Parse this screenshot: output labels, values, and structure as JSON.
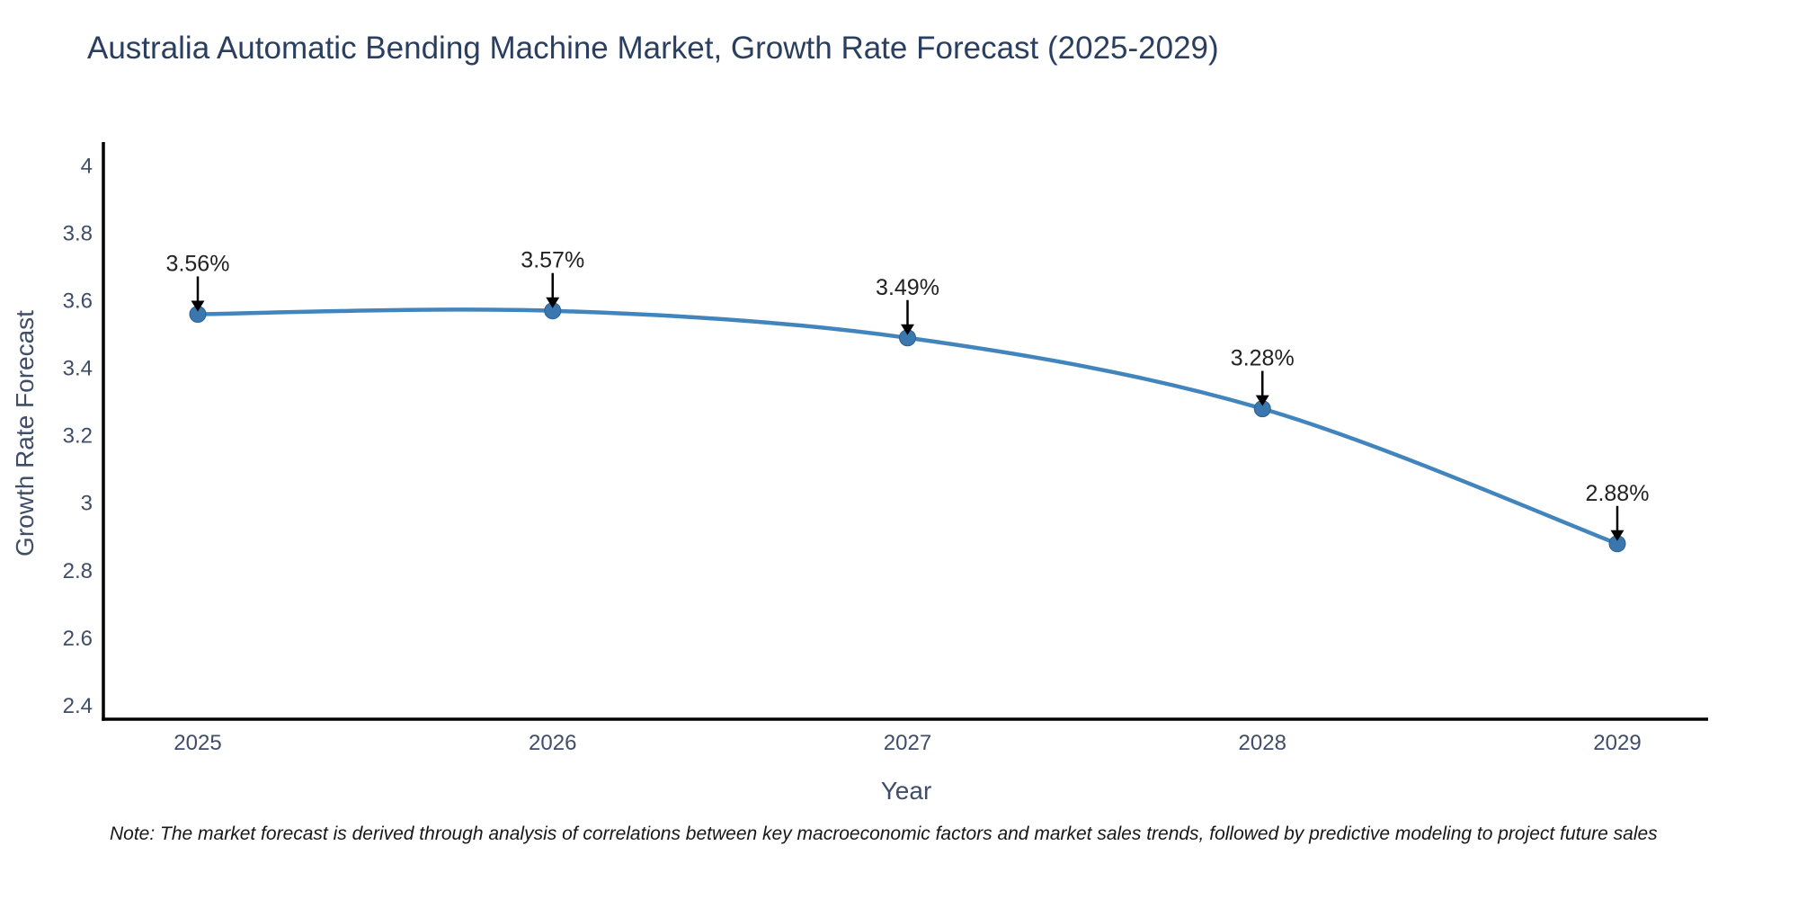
{
  "header": {
    "title": "Australia Automatic Bending Machine Market, Growth Rate Forecast (2025-2029)"
  },
  "note": {
    "text": "Note: The market forecast is derived through analysis of correlations between key macroeconomic factors and market sales trends, followed by predictive modeling to project future sales"
  },
  "chart_data": {
    "type": "line",
    "curve": "spline",
    "title": "Australia Automatic Bending Machine Market, Growth Rate Forecast (2025-2029)",
    "xlabel": "Year",
    "ylabel": "Growth Rate Forecast",
    "categories": [
      "2025",
      "2026",
      "2027",
      "2028",
      "2029"
    ],
    "values": [
      3.56,
      3.57,
      3.49,
      3.28,
      2.88
    ],
    "point_labels": [
      "3.56%",
      "3.57%",
      "3.49%",
      "3.28%",
      "2.88%"
    ],
    "y_tick_labels": [
      "2.4",
      "2.6",
      "2.8",
      "3",
      "3.2",
      "3.4",
      "3.6",
      "3.8",
      "4"
    ],
    "ylim": [
      2.36,
      4.07
    ],
    "grid": false,
    "legend": "none",
    "colors": {
      "line": "#4285bd",
      "marker": "#3b77af",
      "marker_edge": "#2d618f",
      "axis": "#000000",
      "annotation_text": "#222222",
      "arrow": "#000000",
      "tick_label": "#3f4d68"
    }
  }
}
